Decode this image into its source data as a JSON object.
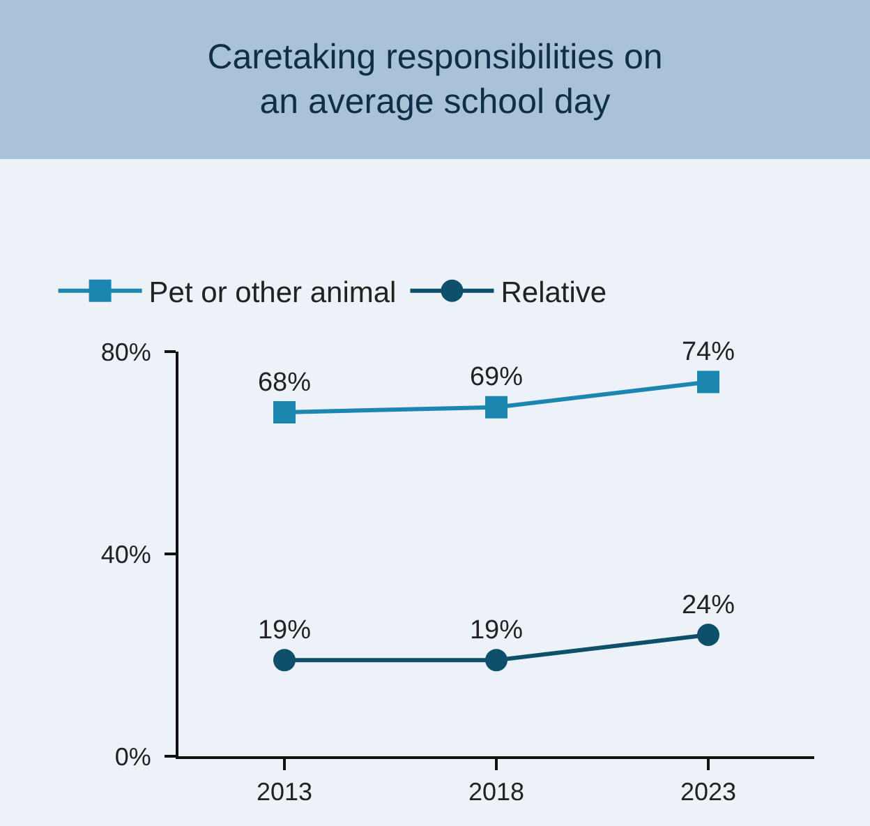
{
  "chart_data": {
    "type": "line",
    "title": "Caretaking responsibilities on\nan average school day",
    "categories": [
      "2013",
      "2018",
      "2023"
    ],
    "series": [
      {
        "name": "Pet or other animal",
        "color": "#1b87b1",
        "marker": "square",
        "values": [
          68,
          69,
          74
        ],
        "value_labels": [
          "68%",
          "69%",
          "74%"
        ]
      },
      {
        "name": "Relative",
        "color": "#0e4f6c",
        "marker": "circle",
        "values": [
          19,
          19,
          24
        ],
        "value_labels": [
          "19%",
          "19%",
          "24%"
        ]
      }
    ],
    "ylim": [
      0,
      80
    ],
    "yticks": [
      {
        "value": 0,
        "label": "0%"
      },
      {
        "value": 40,
        "label": "40%"
      },
      {
        "value": 80,
        "label": "80%"
      }
    ],
    "grid": false,
    "legend": "top left",
    "line_style": "solid"
  }
}
